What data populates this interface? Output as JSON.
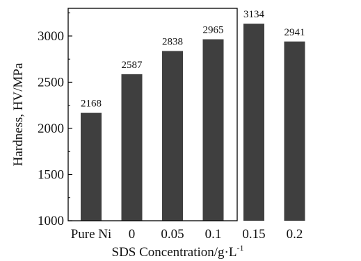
{
  "chart_data": {
    "type": "bar",
    "categories": [
      "Pure Ni",
      "0",
      "0.05",
      "0.1",
      "0.15",
      "0.2"
    ],
    "values": [
      2168,
      2587,
      2838,
      2965,
      3134,
      2941
    ],
    "data_labels": [
      "2168",
      "2587",
      "2838",
      "2965",
      "3134",
      "2941"
    ],
    "xlabel": "SDS Concentration/g·L",
    "xlabel_superscript": "-1",
    "ylabel": "Hardness, HV/MPa",
    "ylim": [
      1000,
      3300
    ],
    "yticks": [
      1000,
      1500,
      2000,
      2500,
      3000
    ],
    "ytick_labels": [
      "1000",
      "1500",
      "2000",
      "2500",
      "3000"
    ],
    "bar_color": "#3f3f3f",
    "grid": false,
    "legend": "none"
  }
}
